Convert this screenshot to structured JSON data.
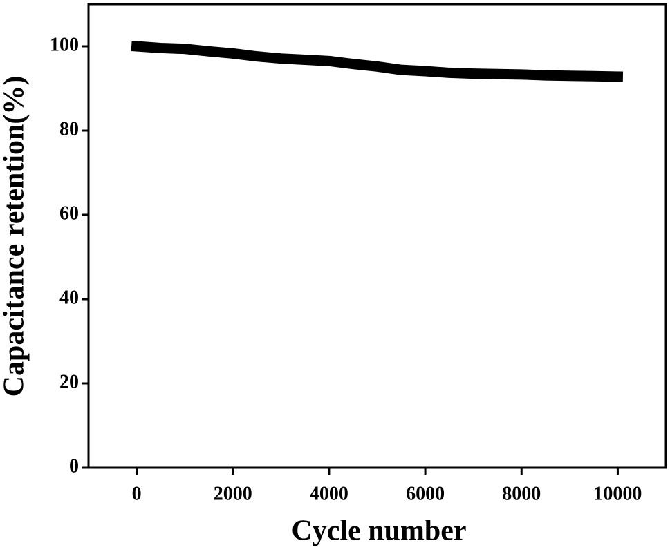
{
  "chart_data": {
    "type": "line",
    "x_label": "Cycle number",
    "y_label": "Capacitance retention(%)",
    "x": [
      0,
      500,
      1000,
      1500,
      2000,
      2500,
      3000,
      3500,
      4000,
      4500,
      5000,
      5500,
      6000,
      6500,
      7000,
      7500,
      8000,
      8500,
      9000,
      9500,
      10000
    ],
    "series": [
      {
        "color": "#000000",
        "values": [
          100,
          99.6,
          99.4,
          98.8,
          98.3,
          97.6,
          97.1,
          96.8,
          96.5,
          95.8,
          95.2,
          94.4,
          94.1,
          93.7,
          93.5,
          93.4,
          93.3,
          93.1,
          93.0,
          92.9,
          92.8
        ]
      }
    ],
    "xlim": [
      -1000,
      11000
    ],
    "ylim": [
      0,
      110
    ],
    "xticks": [
      0,
      2000,
      4000,
      6000,
      8000,
      10000
    ],
    "yticks": [
      0,
      20,
      40,
      60,
      80,
      100
    ],
    "grid": false
  }
}
